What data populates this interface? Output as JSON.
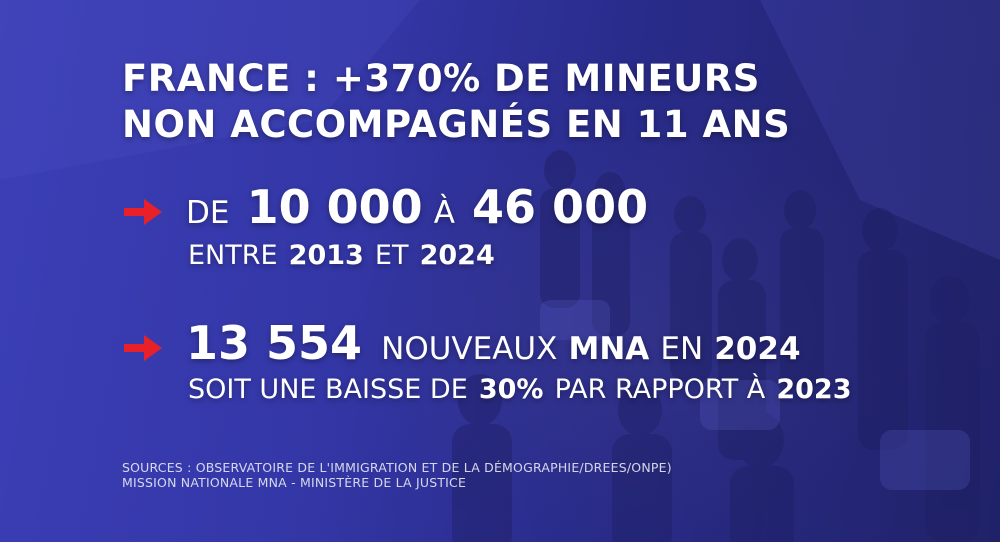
{
  "headline": {
    "line1": "FRANCE : +370% DE MINEURS",
    "line2": "NON ACCOMPAGNÉS EN 11 ANS"
  },
  "stat1": {
    "prefix": "DE",
    "from": "10 000",
    "connector": "À",
    "to": "46 000",
    "period_prefix": "ENTRE",
    "year_start": "2013",
    "period_connector": "ET",
    "year_end": "2024"
  },
  "stat2": {
    "count": "13 554",
    "label": "NOUVEAUX",
    "acronym": "MNA",
    "in_word": "EN",
    "year": "2024",
    "line2_prefix": "SOIT UNE BAISSE DE",
    "percent": "30%",
    "line2_mid": "PAR RAPPORT À",
    "compare_year": "2023"
  },
  "sources": {
    "line1": "SOURCES : OBSERVATOIRE DE L'IMMIGRATION ET DE LA DÉMOGRAPHIE/DREES/ONPE)",
    "line2": "MISSION NATIONALE MNA - MINISTÈRE DE LA JUSTICE"
  },
  "colors": {
    "arrow": "#e8202a",
    "background": "#3437a8",
    "text": "#ffffff"
  },
  "icons": {
    "bullet": "red-arrow-icon"
  }
}
